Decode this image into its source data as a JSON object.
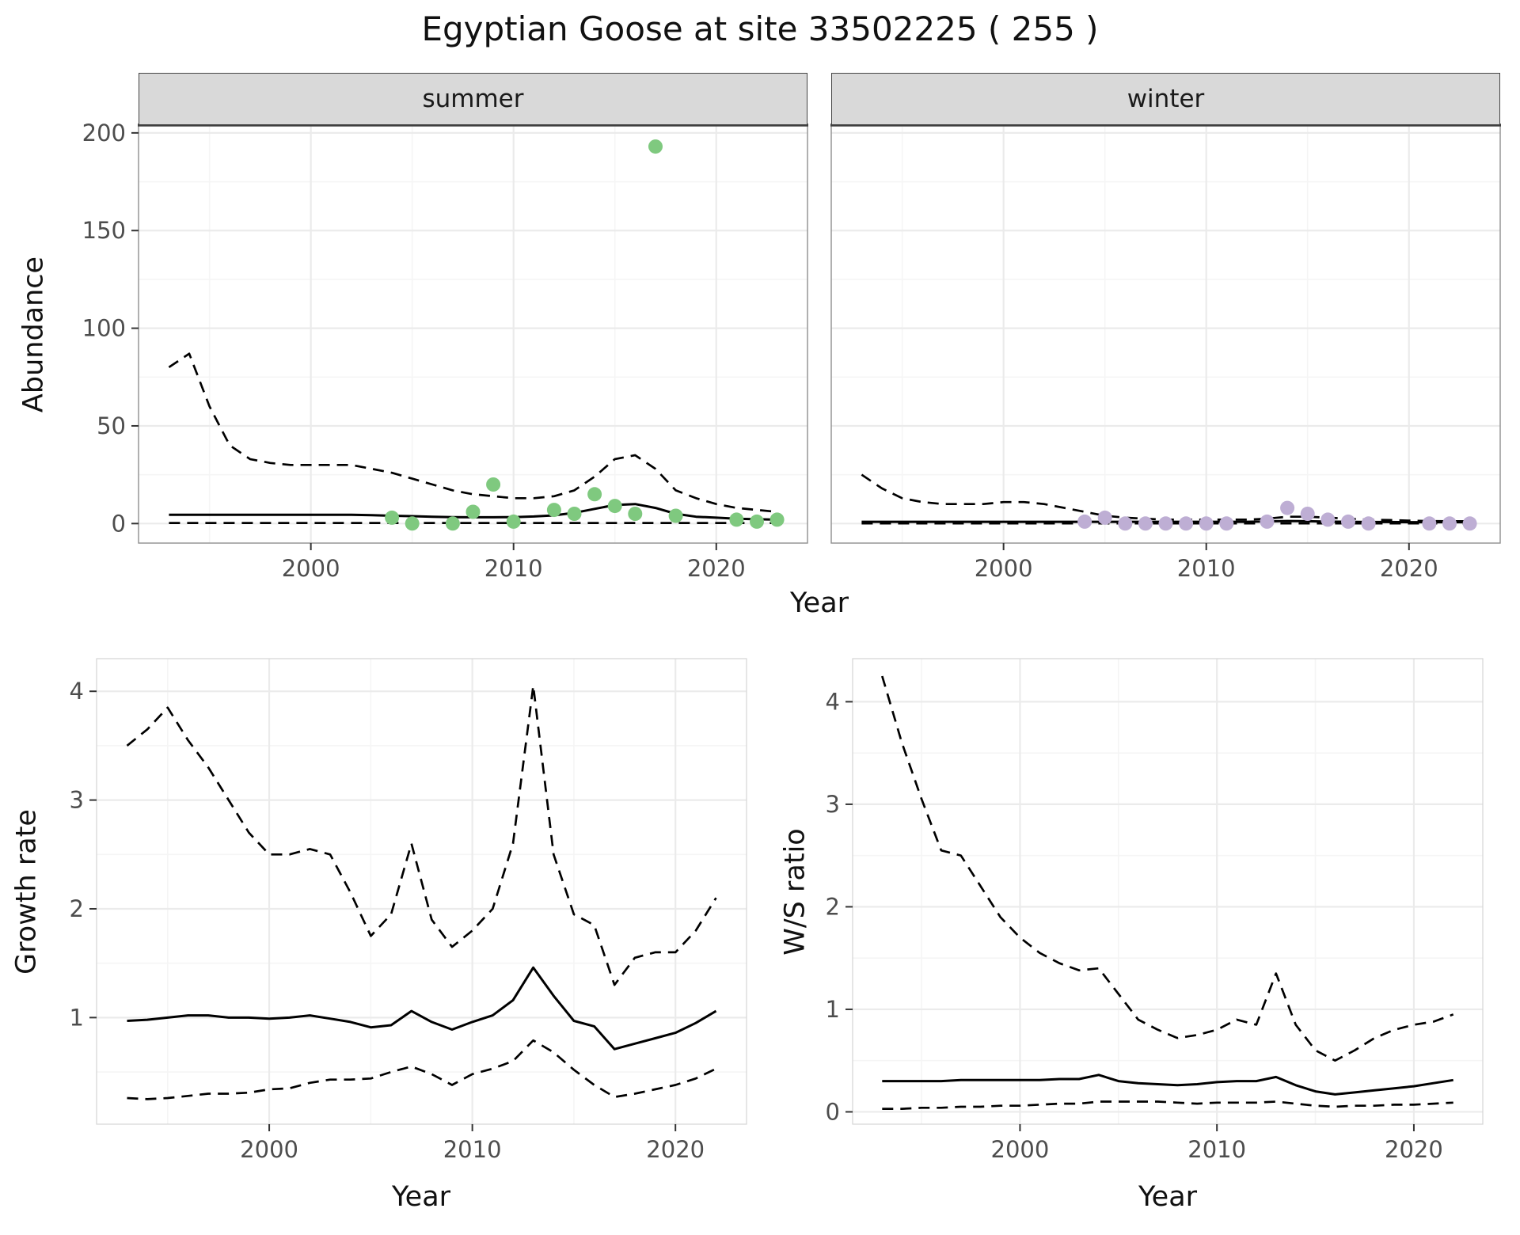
{
  "title": "Egyptian Goose at site 33502225 ( 255 )",
  "colors": {
    "summer_point": "#7FC97F",
    "winter_point": "#BEAED4",
    "line": "#000000",
    "grid_major": "#EBEBEB",
    "grid_minor": "#F5F5F5",
    "strip_bg": "#D9D9D9",
    "tick_text": "#4D4D4D",
    "tick_mark": "#333333"
  },
  "chart_data": [
    {
      "id": "abundance-by-season",
      "type": "scatter",
      "title": "Egyptian Goose at site 33502225 ( 255 )",
      "xlabel": "Year",
      "ylabel": "Abundance",
      "xlim": [
        1991.5,
        2024.5
      ],
      "ylim": [
        -10,
        204
      ],
      "xticks": [
        2000,
        2010,
        2020
      ],
      "yticks": [
        0,
        50,
        100,
        150,
        200
      ],
      "grid": true,
      "years": [
        1993,
        1994,
        1995,
        1996,
        1997,
        1998,
        1999,
        2000,
        2001,
        2002,
        2003,
        2004,
        2005,
        2006,
        2007,
        2008,
        2009,
        2010,
        2011,
        2012,
        2013,
        2014,
        2015,
        2016,
        2017,
        2018,
        2019,
        2020,
        2021,
        2022,
        2023
      ],
      "facets": [
        {
          "label": "summer",
          "upper": [
            80,
            87,
            60,
            40,
            33,
            31,
            30,
            30,
            30,
            30,
            28,
            26,
            23,
            20,
            17,
            15,
            14,
            13,
            13,
            14,
            17,
            24,
            33,
            35,
            28,
            17,
            13,
            10,
            8,
            7,
            6
          ],
          "fit": [
            4.5,
            4.5,
            4.5,
            4.5,
            4.5,
            4.5,
            4.5,
            4.5,
            4.5,
            4.5,
            4.3,
            4,
            3.8,
            3.5,
            3.3,
            3.2,
            3.2,
            3.3,
            3.6,
            4.2,
            5.5,
            7.5,
            9.5,
            10,
            8,
            5,
            3.5,
            3,
            2.5,
            2.2,
            2
          ],
          "lower": [
            0.3,
            0.3,
            0.3,
            0.3,
            0.3,
            0.3,
            0.3,
            0.3,
            0.3,
            0.3,
            0.3,
            0.3,
            0.3,
            0.3,
            0.3,
            0.3,
            0.3,
            0.3,
            0.3,
            0.3,
            0.3,
            0.3,
            0.3,
            0.3,
            0.3,
            0.3,
            0.3,
            0.3,
            0.3,
            0.3,
            0.3
          ],
          "points_x": [
            2004,
            2005,
            2007,
            2008,
            2009,
            2010,
            2012,
            2013,
            2014,
            2015,
            2016,
            2017,
            2018,
            2021,
            2022,
            2023
          ],
          "points_y": [
            3,
            0,
            0,
            6,
            20,
            1,
            7,
            5,
            15,
            9,
            5,
            193,
            4,
            2,
            1,
            2
          ]
        },
        {
          "label": "winter",
          "upper": [
            25,
            18,
            13,
            11,
            10,
            10,
            10,
            11,
            11,
            10,
            8,
            6,
            4,
            3,
            2.5,
            2,
            2,
            2,
            2,
            2,
            2.5,
            3.5,
            3.5,
            3,
            2.5,
            2,
            1.8,
            1.5,
            1.3,
            1.2,
            1.2
          ],
          "fit": [
            0.9,
            0.9,
            0.9,
            0.9,
            0.9,
            0.9,
            0.9,
            0.9,
            0.9,
            0.9,
            0.9,
            0.9,
            0.9,
            0.9,
            0.9,
            0.9,
            0.9,
            0.9,
            0.9,
            0.9,
            1.1,
            1.3,
            1.2,
            1,
            0.9,
            0.8,
            0.8,
            0.7,
            0.7,
            0.7,
            0.7
          ],
          "lower": [
            0.1,
            0.1,
            0.1,
            0.1,
            0.1,
            0.1,
            0.1,
            0.1,
            0.1,
            0.1,
            0.1,
            0.1,
            0.1,
            0.1,
            0.1,
            0.1,
            0.1,
            0.1,
            0.1,
            0.1,
            0.1,
            0.1,
            0.1,
            0.1,
            0.1,
            0.1,
            0.1,
            0.1,
            0.1,
            0.1,
            0.1
          ],
          "points_x": [
            2004,
            2005,
            2006,
            2007,
            2008,
            2009,
            2010,
            2011,
            2013,
            2014,
            2015,
            2016,
            2017,
            2018,
            2021,
            2022,
            2023
          ],
          "points_y": [
            1,
            3,
            0,
            0,
            0,
            0,
            0,
            0,
            1,
            8,
            5,
            2,
            1,
            0,
            0,
            0,
            0
          ]
        }
      ]
    },
    {
      "id": "growth-rate",
      "type": "line",
      "xlabel": "Year",
      "ylabel": "Growth rate",
      "xlim": [
        1991.5,
        2023.5
      ],
      "ylim": [
        0.02,
        4.3
      ],
      "xticks": [
        2000,
        2010,
        2020
      ],
      "yticks": [
        1,
        2,
        3,
        4
      ],
      "grid": true,
      "years": [
        1993,
        1994,
        1995,
        1996,
        1997,
        1998,
        1999,
        2000,
        2001,
        2002,
        2003,
        2004,
        2005,
        2006,
        2007,
        2008,
        2009,
        2010,
        2011,
        2012,
        2013,
        2014,
        2015,
        2016,
        2017,
        2018,
        2019,
        2020,
        2021,
        2022
      ],
      "upper": [
        3.5,
        3.65,
        3.85,
        3.55,
        3.3,
        3,
        2.7,
        2.5,
        2.5,
        2.55,
        2.5,
        2.15,
        1.75,
        1.95,
        2.6,
        1.9,
        1.65,
        1.8,
        2,
        2.6,
        4.05,
        2.5,
        1.95,
        1.85,
        1.3,
        1.55,
        1.6,
        1.6,
        1.8,
        2.1
      ],
      "fit": [
        0.97,
        0.98,
        1,
        1.02,
        1.02,
        1,
        1,
        0.99,
        1,
        1.02,
        0.99,
        0.96,
        0.91,
        0.93,
        1.06,
        0.96,
        0.89,
        0.96,
        1.02,
        1.16,
        1.46,
        1.2,
        0.97,
        0.92,
        0.71,
        0.76,
        0.81,
        0.86,
        0.95,
        1.06
      ],
      "lower": [
        0.26,
        0.25,
        0.26,
        0.28,
        0.3,
        0.3,
        0.31,
        0.34,
        0.35,
        0.4,
        0.43,
        0.43,
        0.44,
        0.5,
        0.55,
        0.48,
        0.38,
        0.48,
        0.53,
        0.6,
        0.79,
        0.68,
        0.52,
        0.38,
        0.27,
        0.3,
        0.34,
        0.38,
        0.44,
        0.53
      ]
    },
    {
      "id": "ws-ratio",
      "type": "line",
      "xlabel": "Year",
      "ylabel": "W/S ratio",
      "xlim": [
        1991.5,
        2023.5
      ],
      "ylim": [
        -0.12,
        4.42
      ],
      "xticks": [
        2000,
        2010,
        2020
      ],
      "yticks": [
        0,
        1,
        2,
        3,
        4
      ],
      "grid": true,
      "years": [
        1993,
        1994,
        1995,
        1996,
        1997,
        1998,
        1999,
        2000,
        2001,
        2002,
        2003,
        2004,
        2005,
        2006,
        2007,
        2008,
        2009,
        2010,
        2011,
        2012,
        2013,
        2014,
        2015,
        2016,
        2017,
        2018,
        2019,
        2020,
        2021,
        2022
      ],
      "upper": [
        4.25,
        3.6,
        3.05,
        2.55,
        2.5,
        2.2,
        1.9,
        1.7,
        1.55,
        1.45,
        1.38,
        1.4,
        1.15,
        0.9,
        0.8,
        0.72,
        0.75,
        0.8,
        0.9,
        0.85,
        1.35,
        0.85,
        0.6,
        0.5,
        0.6,
        0.72,
        0.8,
        0.85,
        0.88,
        0.95
      ],
      "fit": [
        0.3,
        0.3,
        0.3,
        0.3,
        0.31,
        0.31,
        0.31,
        0.31,
        0.31,
        0.32,
        0.32,
        0.36,
        0.3,
        0.28,
        0.27,
        0.26,
        0.27,
        0.29,
        0.3,
        0.3,
        0.34,
        0.26,
        0.2,
        0.17,
        0.19,
        0.21,
        0.23,
        0.25,
        0.28,
        0.31
      ],
      "lower": [
        0.03,
        0.03,
        0.04,
        0.04,
        0.05,
        0.05,
        0.06,
        0.06,
        0.07,
        0.08,
        0.08,
        0.1,
        0.1,
        0.1,
        0.1,
        0.09,
        0.08,
        0.09,
        0.09,
        0.09,
        0.1,
        0.08,
        0.06,
        0.05,
        0.06,
        0.06,
        0.07,
        0.07,
        0.08,
        0.09
      ]
    }
  ]
}
